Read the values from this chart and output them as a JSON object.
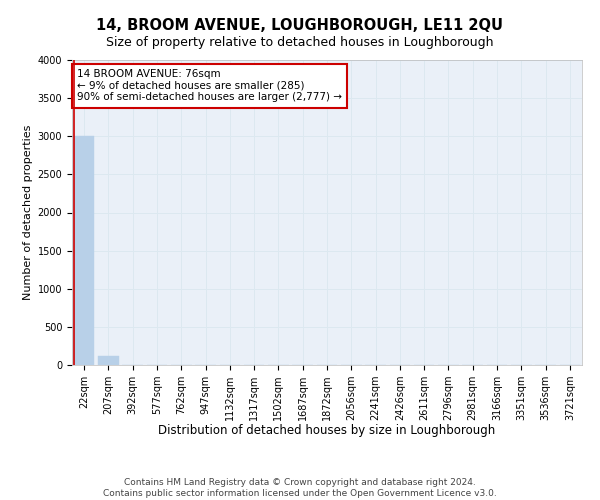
{
  "title": "14, BROOM AVENUE, LOUGHBOROUGH, LE11 2QU",
  "subtitle": "Size of property relative to detached houses in Loughborough",
  "xlabel": "Distribution of detached houses by size in Loughborough",
  "ylabel": "Number of detached properties",
  "footer_line1": "Contains HM Land Registry data © Crown copyright and database right 2024.",
  "footer_line2": "Contains public sector information licensed under the Open Government Licence v3.0.",
  "bar_labels": [
    "22sqm",
    "207sqm",
    "392sqm",
    "577sqm",
    "762sqm",
    "947sqm",
    "1132sqm",
    "1317sqm",
    "1502sqm",
    "1687sqm",
    "1872sqm",
    "2056sqm",
    "2241sqm",
    "2426sqm",
    "2611sqm",
    "2796sqm",
    "2981sqm",
    "3166sqm",
    "3351sqm",
    "3536sqm",
    "3721sqm"
  ],
  "bar_values": [
    3000,
    115,
    0,
    0,
    0,
    0,
    0,
    0,
    0,
    0,
    0,
    0,
    0,
    0,
    0,
    0,
    0,
    0,
    0,
    0,
    0
  ],
  "bar_color": "#b8d0e8",
  "bar_edgecolor": "#b8d0e8",
  "highlight_bar_index": 0,
  "highlight_color": "#cc0000",
  "ylim": [
    0,
    4000
  ],
  "yticks": [
    0,
    500,
    1000,
    1500,
    2000,
    2500,
    3000,
    3500,
    4000
  ],
  "annotation_text": "14 BROOM AVENUE: 76sqm\n← 9% of detached houses are smaller (285)\n90% of semi-detached houses are larger (2,777) →",
  "annotation_fontsize": 7.5,
  "grid_color": "#dce8f0",
  "bg_color": "#eaf0f8",
  "title_fontsize": 10.5,
  "subtitle_fontsize": 9,
  "xlabel_fontsize": 8.5,
  "ylabel_fontsize": 8,
  "tick_fontsize": 7,
  "footer_fontsize": 6.5
}
